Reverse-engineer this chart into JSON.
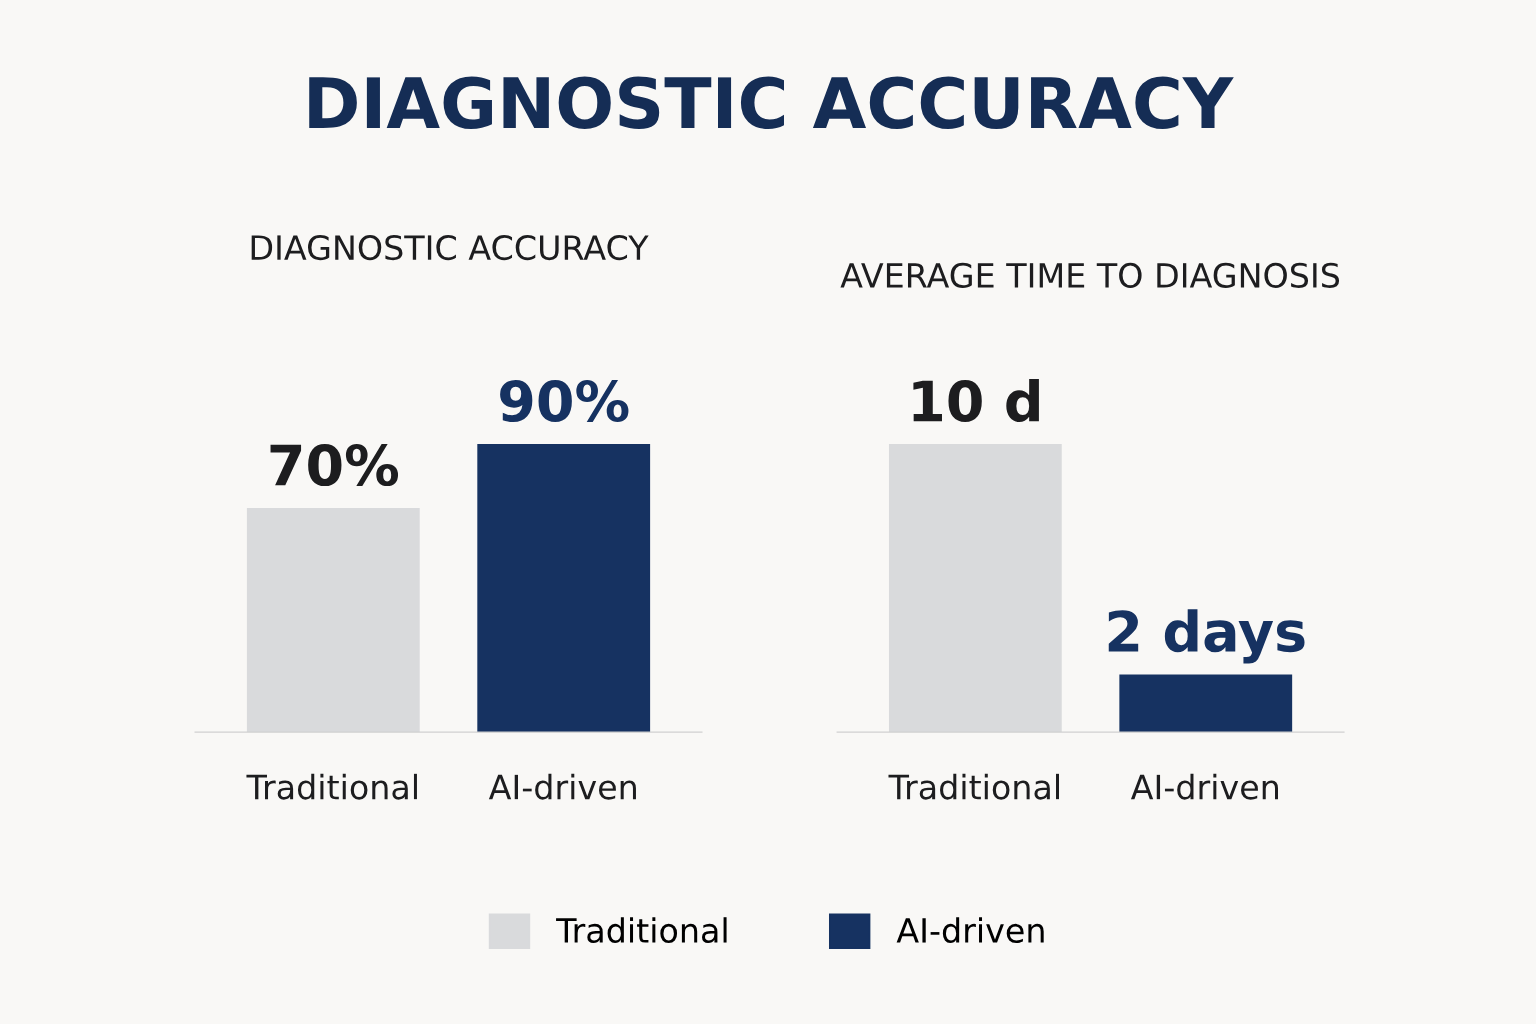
{
  "chart_data": [
    {
      "type": "bar",
      "title": "DIAGNOSTIC ACCURACY",
      "subtitle": "DIAGNOSTIC ACCURACY",
      "categories": [
        "Traditional",
        "AI-driven"
      ],
      "series": [
        {
          "name": "Traditional",
          "color": "#d9dadc",
          "values": [
            70,
            null
          ],
          "value_labels": [
            "70%",
            null
          ]
        },
        {
          "name": "AI-driven",
          "color": "#163261",
          "values": [
            null,
            90
          ],
          "value_labels": [
            null,
            "90%"
          ]
        }
      ],
      "legend": "bottom",
      "tick_labels": "x",
      "grid": false
    },
    {
      "type": "bar",
      "title": "AVERAGE TIME TO DIAGNOSIS",
      "categories": [
        "Traditional",
        "AI-driven"
      ],
      "series": [
        {
          "color": "#d9dadc",
          "values": [
            10,
            null
          ],
          "value_labels": [
            "10 d",
            null
          ]
        },
        {
          "color": "#163261",
          "values": [
            null,
            2
          ],
          "value_labels": [
            null,
            "2 days"
          ]
        }
      ],
      "legend": false,
      "tick_labels": "x",
      "grid": false
    }
  ]
}
